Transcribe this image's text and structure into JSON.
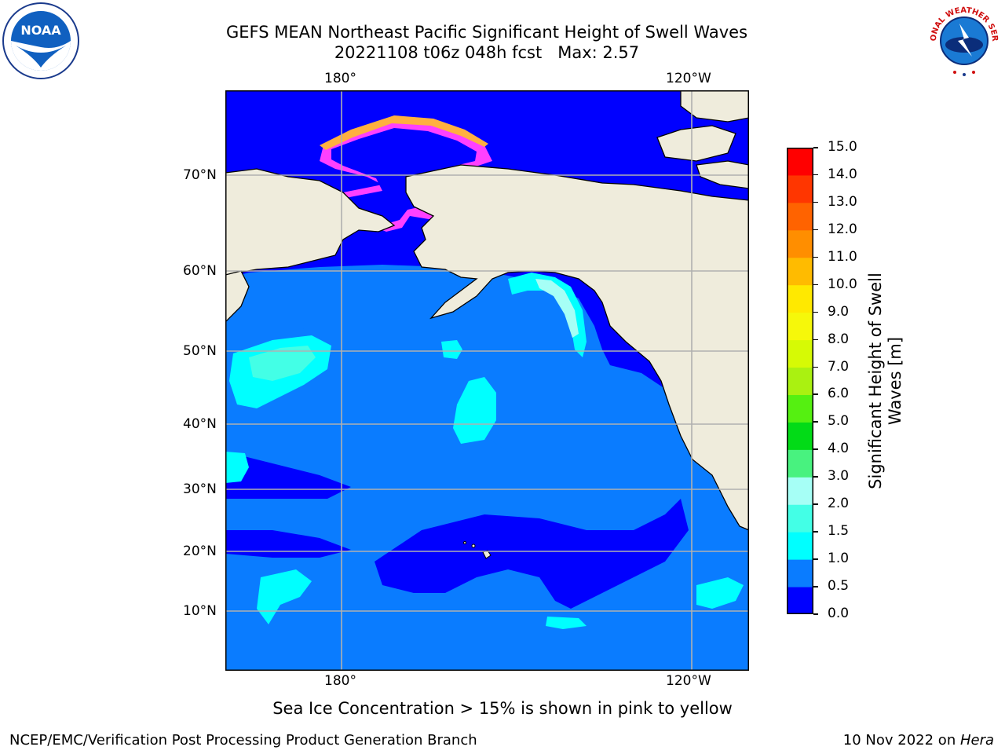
{
  "header": {
    "title_line1": "GEFS MEAN Northeast Pacific Significant Height of Swell Waves",
    "title_line2": "20221108 t06z 048h fcst   Max: 2.57"
  },
  "logos": {
    "left": "noaa-logo",
    "left_text": "NOAA",
    "right": "nws-logo",
    "right_text": "NATIONAL WEATHER SERVICE"
  },
  "map": {
    "lon_labels_top": [
      "180°",
      "120°W"
    ],
    "lon_labels_bottom": [
      "180°",
      "120°W"
    ],
    "lat_labels": [
      "70°N",
      "60°N",
      "50°N",
      "40°N",
      "30°N",
      "20°N",
      "10°N"
    ],
    "land_color": "#efecdc",
    "grid_color": "#b0b0b0"
  },
  "colorbar": {
    "label_line1": "Significant Height of Swell",
    "label_line2": "Waves [m]",
    "ticks": [
      "0.0",
      "0.5",
      "1.0",
      "1.5",
      "2.0",
      "3.0",
      "4.0",
      "5.0",
      "6.0",
      "7.0",
      "8.0",
      "9.0",
      "10.0",
      "11.0",
      "12.0",
      "13.0",
      "14.0",
      "15.0"
    ],
    "colors": [
      "#0000ff",
      "#0a7cff",
      "#00ffff",
      "#43ffe6",
      "#a6fff6",
      "#48f27f",
      "#02db17",
      "#55f011",
      "#aaf111",
      "#d6fa05",
      "#f6f80a",
      "#ffe900",
      "#ffbb00",
      "#ff8e00",
      "#ff6300",
      "#ff3600",
      "#ff0000"
    ]
  },
  "caption": "Sea Ice Concentration > 15% is shown in pink to yellow",
  "footer": {
    "left": "NCEP/EMC/Verification Post Processing Product Generation Branch",
    "right_prefix": "10 Nov 2022 on ",
    "right_italic": "Hera"
  }
}
